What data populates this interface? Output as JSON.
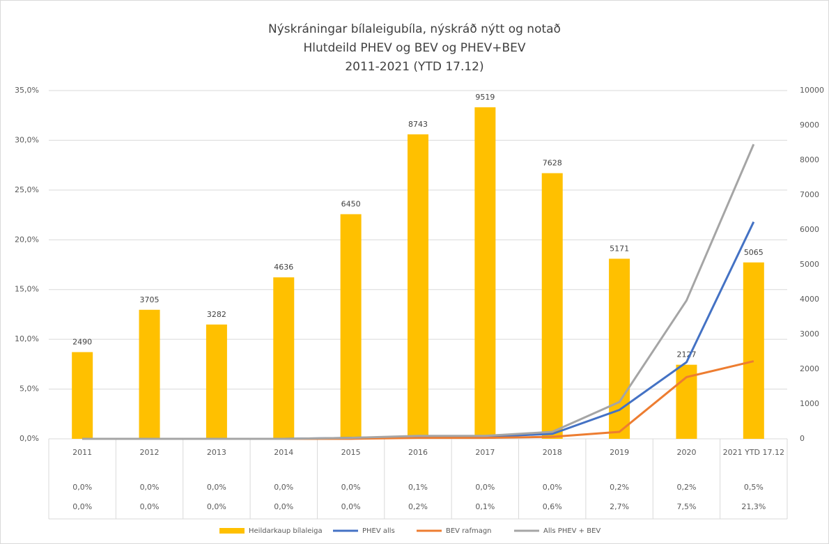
{
  "chart_data": {
    "type": "bar-line",
    "title": [
      "Nýskráningar bílaleigubíla, nýskráð nýtt og notað",
      "Hlutdeild PHEV og BEV og PHEV+BEV",
      "2011-2021 (YTD 17.12)"
    ],
    "categories": [
      "2011",
      "2012",
      "2013",
      "2014",
      "2015",
      "2016",
      "2017",
      "2018",
      "2019",
      "2020",
      "2021 YTD 17.12"
    ],
    "series": [
      {
        "name": "Heildarkaup bílaleiga",
        "type": "bar",
        "axis": "y2",
        "color": "#ffc000",
        "values": [
          2490,
          3705,
          3282,
          4636,
          6450,
          8743,
          9519,
          7628,
          5171,
          2127,
          5065
        ]
      },
      {
        "name": "PHEV alls",
        "type": "line",
        "color": "#4472c4",
        "values": [
          0,
          0,
          0,
          0,
          0.1,
          0.2,
          0.2,
          0.5,
          2.9,
          7.7,
          21.8
        ]
      },
      {
        "name": "BEV rafmagn",
        "type": "line",
        "color": "#ed7d31",
        "values": [
          0,
          0,
          0,
          0,
          0,
          0.1,
          0.1,
          0.2,
          0.7,
          6.2,
          7.8
        ]
      },
      {
        "name": "Alls PHEV + BEV",
        "type": "line",
        "color": "#a5a5a5",
        "values": [
          0,
          0,
          0,
          0,
          0.1,
          0.3,
          0.3,
          0.7,
          3.7,
          13.9,
          29.6
        ]
      }
    ],
    "table_rows": [
      {
        "values": [
          0,
          0,
          0,
          0,
          0,
          0.1,
          0,
          0,
          0.2,
          0.2,
          0.5
        ],
        "value_labels": [
          "0,0%",
          "0,0%",
          "0,0%",
          "0,0%",
          "0,0%",
          "0,1%",
          "0,0%",
          "0,0%",
          "0,2%",
          "0,2%",
          "0,5%"
        ]
      },
      {
        "values": [
          0,
          0,
          0,
          0,
          0,
          0.2,
          0.1,
          0.6,
          2.7,
          7.5,
          21.3
        ],
        "value_labels": [
          "0,0%",
          "0,0%",
          "0,0%",
          "0,0%",
          "0,0%",
          "0,2%",
          "0,1%",
          "0,6%",
          "2,7%",
          "7,5%",
          "21,3%"
        ]
      }
    ],
    "ylim": [
      0,
      35
    ],
    "yticks": [
      {
        "value": 0,
        "label": "0,0%"
      },
      {
        "value": 5,
        "label": "5,0%"
      },
      {
        "value": 10,
        "label": "10,0%"
      },
      {
        "value": 15,
        "label": "15,0%"
      },
      {
        "value": 20,
        "label": "20,0%"
      },
      {
        "value": 25,
        "label": "25,0%"
      },
      {
        "value": 30,
        "label": "30,0%"
      },
      {
        "value": 35,
        "label": "35,0%"
      }
    ],
    "y2lim": [
      0,
      10000
    ],
    "y2ticks": [
      0,
      1000,
      2000,
      3000,
      4000,
      5000,
      6000,
      7000,
      8000,
      9000,
      10000
    ],
    "grid": true,
    "legend": "bottom"
  }
}
